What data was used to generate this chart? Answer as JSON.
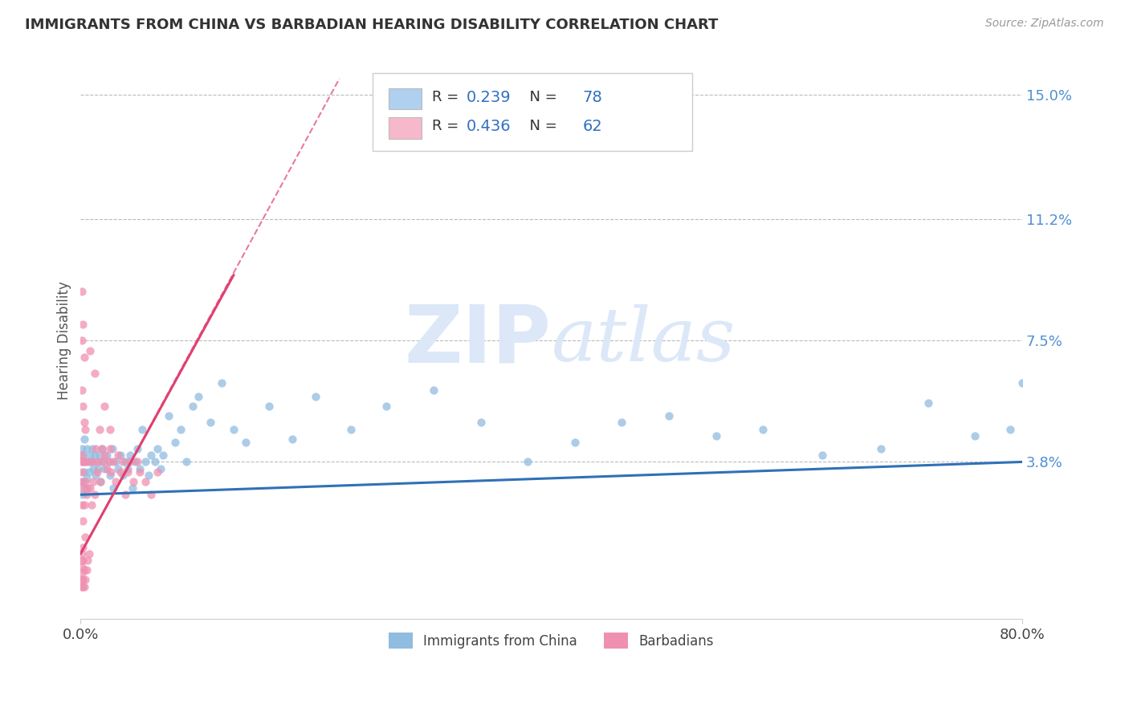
{
  "title": "IMMIGRANTS FROM CHINA VS BARBADIAN HEARING DISABILITY CORRELATION CHART",
  "source": "Source: ZipAtlas.com",
  "ylabel": "Hearing Disability",
  "xlim": [
    0.0,
    0.8
  ],
  "ylim": [
    -0.01,
    0.16
  ],
  "ytick_positions": [
    0.038,
    0.075,
    0.112,
    0.15
  ],
  "ytick_labels": [
    "3.8%",
    "7.5%",
    "11.2%",
    "15.0%"
  ],
  "series1_color": "#90bce0",
  "series2_color": "#f090b0",
  "trendline1_color": "#3070b8",
  "trendline2_color": "#e04070",
  "watermark_zip": "ZIP",
  "watermark_atlas": "atlas",
  "watermark_color": "#dce8f8",
  "background_color": "#ffffff",
  "grid_color": "#bbbbbb",
  "legend_entry1_color": "#b0d0f0",
  "legend_entry2_color": "#f8b8cc",
  "china_x": [
    0.001,
    0.001,
    0.002,
    0.002,
    0.003,
    0.003,
    0.004,
    0.004,
    0.005,
    0.005,
    0.006,
    0.007,
    0.008,
    0.009,
    0.01,
    0.011,
    0.012,
    0.013,
    0.014,
    0.015,
    0.016,
    0.017,
    0.018,
    0.019,
    0.02,
    0.022,
    0.024,
    0.025,
    0.027,
    0.028,
    0.03,
    0.032,
    0.034,
    0.036,
    0.038,
    0.04,
    0.042,
    0.044,
    0.046,
    0.048,
    0.05,
    0.052,
    0.055,
    0.058,
    0.06,
    0.063,
    0.065,
    0.068,
    0.07,
    0.075,
    0.08,
    0.085,
    0.09,
    0.095,
    0.1,
    0.11,
    0.12,
    0.13,
    0.14,
    0.16,
    0.18,
    0.2,
    0.23,
    0.26,
    0.3,
    0.34,
    0.38,
    0.42,
    0.46,
    0.5,
    0.54,
    0.58,
    0.63,
    0.68,
    0.72,
    0.76,
    0.79,
    0.8
  ],
  "china_y": [
    0.032,
    0.042,
    0.028,
    0.04,
    0.035,
    0.045,
    0.03,
    0.038,
    0.033,
    0.042,
    0.038,
    0.035,
    0.04,
    0.038,
    0.042,
    0.036,
    0.04,
    0.034,
    0.038,
    0.036,
    0.04,
    0.032,
    0.042,
    0.038,
    0.036,
    0.04,
    0.038,
    0.034,
    0.042,
    0.03,
    0.038,
    0.036,
    0.04,
    0.034,
    0.038,
    0.036,
    0.04,
    0.03,
    0.038,
    0.042,
    0.036,
    0.048,
    0.038,
    0.034,
    0.04,
    0.038,
    0.042,
    0.036,
    0.04,
    0.052,
    0.044,
    0.048,
    0.038,
    0.055,
    0.058,
    0.05,
    0.062,
    0.048,
    0.044,
    0.055,
    0.045,
    0.058,
    0.048,
    0.055,
    0.06,
    0.05,
    0.038,
    0.044,
    0.05,
    0.052,
    0.046,
    0.048,
    0.04,
    0.042,
    0.056,
    0.046,
    0.048,
    0.062
  ],
  "barbados_x": [
    0.001,
    0.001,
    0.001,
    0.001,
    0.001,
    0.001,
    0.001,
    0.001,
    0.001,
    0.001,
    0.001,
    0.002,
    0.002,
    0.002,
    0.002,
    0.002,
    0.002,
    0.002,
    0.003,
    0.003,
    0.003,
    0.003,
    0.004,
    0.004,
    0.004,
    0.005,
    0.005,
    0.006,
    0.006,
    0.007,
    0.007,
    0.008,
    0.009,
    0.01,
    0.011,
    0.012,
    0.013,
    0.014,
    0.015,
    0.016,
    0.017,
    0.018,
    0.019,
    0.02,
    0.022,
    0.024,
    0.025,
    0.026,
    0.028,
    0.03,
    0.032,
    0.034,
    0.036,
    0.038,
    0.04,
    0.042,
    0.045,
    0.048,
    0.05,
    0.055,
    0.06,
    0.065
  ],
  "barbados_y": [
    0.0,
    0.002,
    0.004,
    0.006,
    0.008,
    0.01,
    0.025,
    0.03,
    0.035,
    0.038,
    0.04,
    0.0,
    0.002,
    0.008,
    0.012,
    0.02,
    0.032,
    0.038,
    0.0,
    0.005,
    0.025,
    0.038,
    0.002,
    0.015,
    0.032,
    0.005,
    0.028,
    0.008,
    0.03,
    0.01,
    0.038,
    0.03,
    0.025,
    0.038,
    0.032,
    0.028,
    0.042,
    0.035,
    0.038,
    0.048,
    0.032,
    0.042,
    0.038,
    0.04,
    0.036,
    0.038,
    0.042,
    0.035,
    0.038,
    0.032,
    0.04,
    0.035,
    0.038,
    0.028,
    0.035,
    0.038,
    0.032,
    0.038,
    0.035,
    0.032,
    0.028,
    0.035
  ],
  "barb_high_x": [
    0.001,
    0.001,
    0.001,
    0.002,
    0.002,
    0.003,
    0.003,
    0.004,
    0.008,
    0.012,
    0.02,
    0.025
  ],
  "barb_high_y": [
    0.06,
    0.075,
    0.09,
    0.055,
    0.08,
    0.05,
    0.07,
    0.048,
    0.072,
    0.065,
    0.055,
    0.048
  ],
  "trendline1_x0": 0.0,
  "trendline1_y0": 0.028,
  "trendline1_x1": 0.8,
  "trendline1_y1": 0.038,
  "trendline2_x0": 0.0,
  "trendline2_y0": 0.01,
  "trendline2_x1": 0.13,
  "trendline2_y1": 0.095,
  "trendline2_dash_x0": 0.0,
  "trendline2_dash_y0": 0.01,
  "trendline2_dash_x1": 0.22,
  "trendline2_dash_y1": 0.155
}
